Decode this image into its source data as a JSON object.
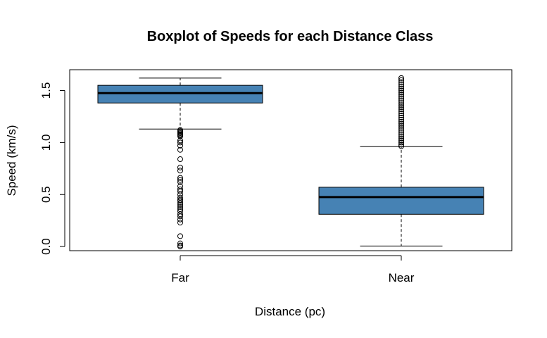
{
  "chart_data": {
    "type": "boxplot",
    "title": "Boxplot of Speeds for each Distance Class",
    "xlabel": "Distance (pc)",
    "ylabel": "Speed (km/s)",
    "ylim": [
      -0.04,
      1.7
    ],
    "yticks": [
      0.0,
      0.5,
      1.0,
      1.5
    ],
    "ytick_labels": [
      "0.0",
      "0.5",
      "1.0",
      "1.5"
    ],
    "box_color": "#4682B4",
    "categories": [
      "Far",
      "Near"
    ],
    "boxes": [
      {
        "name": "Far",
        "whisker_low": 1.13,
        "q1": 1.38,
        "median": 1.475,
        "q3": 1.55,
        "whisker_high": 1.62,
        "outliers": [
          1.12,
          1.11,
          1.1,
          1.09,
          1.08,
          1.07,
          1.06,
          1.02,
          1.0,
          0.97,
          0.93,
          0.84,
          0.76,
          0.73,
          0.66,
          0.64,
          0.62,
          0.58,
          0.55,
          0.53,
          0.5,
          0.47,
          0.45,
          0.44,
          0.42,
          0.4,
          0.38,
          0.36,
          0.34,
          0.31,
          0.29,
          0.26,
          0.23,
          0.1,
          0.03,
          0.01,
          0.0
        ]
      },
      {
        "name": "Near",
        "whisker_low": 0.005,
        "q1": 0.31,
        "median": 0.475,
        "q3": 0.57,
        "whisker_high": 0.96,
        "outliers": [
          0.965,
          0.98,
          1.0,
          1.02,
          1.04,
          1.06,
          1.08,
          1.1,
          1.12,
          1.14,
          1.16,
          1.18,
          1.2,
          1.22,
          1.24,
          1.26,
          1.28,
          1.3,
          1.32,
          1.34,
          1.36,
          1.38,
          1.4,
          1.42,
          1.44,
          1.46,
          1.48,
          1.5,
          1.52,
          1.54,
          1.56,
          1.58,
          1.6,
          1.62
        ]
      }
    ]
  }
}
